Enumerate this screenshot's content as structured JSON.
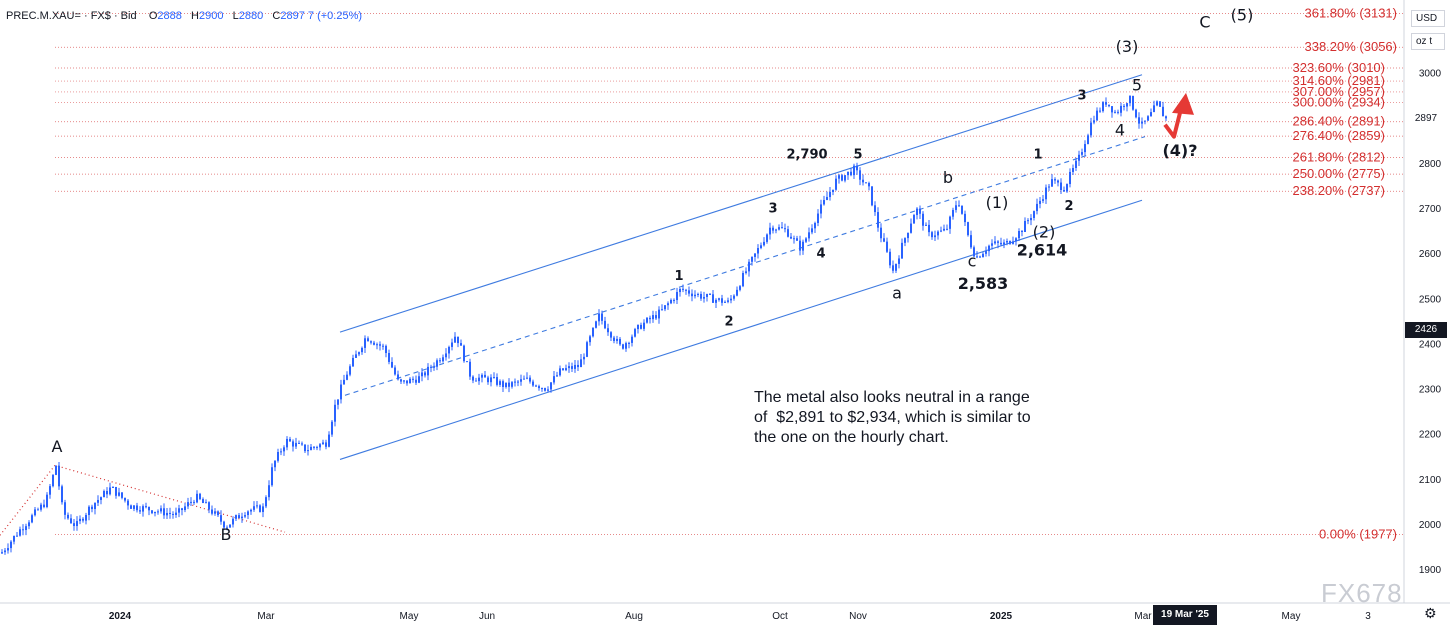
{
  "header": {
    "symbol": "PREC.M.XAU=",
    "source": "FX$",
    "quote": "Bid",
    "open_label": "O",
    "open": "2888",
    "high_label": "H",
    "high": "2900",
    "low_label": "L",
    "low": "2880",
    "close_label": "C",
    "close": "2897",
    "change": "7 (+0.25%)"
  },
  "currency": "USD",
  "unit": "oz t",
  "annotation": "The metal also looks neutral in a range\nof  $2,891 to $2,934, which is similar to\nthe one on the hourly chart.",
  "watermark": "FX678",
  "crosshair_date": "19 Mar '25",
  "crosshair_price": "2426",
  "last_price": "2897",
  "colors": {
    "up": "#2962ff",
    "fib": "#d32f2f",
    "channel": "#3f7be0",
    "arrow": "#e53935"
  },
  "chart_data": {
    "type": "candlestick",
    "title": "",
    "y_axis": {
      "ticks": [
        1900,
        2000,
        2100,
        2200,
        2300,
        2400,
        2500,
        2600,
        2700,
        2800,
        2900,
        3000
      ],
      "ylim": [
        1865,
        3160
      ]
    },
    "x_axis": {
      "ticks": [
        "2024",
        "Mar",
        "May",
        "Jun",
        "Aug",
        "Oct",
        "Nov",
        "2025",
        "Mar",
        "May",
        "3"
      ]
    },
    "fib_levels": [
      {
        "label": "361.80% (3131)",
        "value": 3131
      },
      {
        "label": "338.20% (3056)",
        "value": 3056
      },
      {
        "label": "323.60% (3010)",
        "value": 3010
      },
      {
        "label": "314.60% (2981)",
        "value": 2981
      },
      {
        "label": "307.00% (2957)",
        "value": 2957
      },
      {
        "label": "300.00% (2934)",
        "value": 2934
      },
      {
        "label": "286.40% (2891)",
        "value": 2891
      },
      {
        "label": "276.40% (2859)",
        "value": 2859
      },
      {
        "label": "261.80% (2812)",
        "value": 2812
      },
      {
        "label": "250.00% (2775)",
        "value": 2775
      },
      {
        "label": "238.20% (2737)",
        "value": 2737
      },
      {
        "label": "0.00% (1977)",
        "value": 1977
      }
    ],
    "wave_labels": [
      {
        "text": "A",
        "price": 2160,
        "small": false
      },
      {
        "text": "B",
        "price": 1965,
        "small": false
      },
      {
        "text": "1",
        "price": 2540,
        "small": true
      },
      {
        "text": "2",
        "price": 2440,
        "small": true
      },
      {
        "text": "3",
        "price": 2690,
        "small": true
      },
      {
        "text": "4",
        "price": 2590,
        "small": true
      },
      {
        "text": "5",
        "price": 2810,
        "small": true
      },
      {
        "text": "2,790",
        "price": 2810,
        "small": true
      },
      {
        "text": "a",
        "price": 2500,
        "small": false
      },
      {
        "text": "b",
        "price": 2755,
        "small": false
      },
      {
        "text": "c",
        "price": 2570,
        "small": false
      },
      {
        "text": "2,583",
        "price": 2520,
        "small": false
      },
      {
        "text": "(1)",
        "price": 2700,
        "small": false
      },
      {
        "text": "(2)",
        "price": 2635,
        "small": false
      },
      {
        "text": "2,614",
        "price": 2595,
        "small": false
      },
      {
        "text": "1",
        "price": 2810,
        "small": true
      },
      {
        "text": "2",
        "price": 2695,
        "small": true
      },
      {
        "text": "3",
        "price": 2940,
        "small": true
      },
      {
        "text": "4",
        "price": 2860,
        "small": false
      },
      {
        "text": "5",
        "price": 2960,
        "small": false
      },
      {
        "text": "(3)",
        "price": 3045,
        "small": false
      },
      {
        "text": "(4)?",
        "price": 2815,
        "small": false
      },
      {
        "text": "C",
        "price": 3100,
        "small": false
      },
      {
        "text": "(5)",
        "price": 3115,
        "small": false
      }
    ],
    "path": [
      {
        "t": 0,
        "p": 1935
      },
      {
        "t": 20,
        "p": 1990
      },
      {
        "t": 45,
        "p": 2050
      },
      {
        "t": 55,
        "p": 2130
      },
      {
        "t": 62,
        "p": 2025
      },
      {
        "t": 75,
        "p": 1995
      },
      {
        "t": 90,
        "p": 2040
      },
      {
        "t": 110,
        "p": 2080
      },
      {
        "t": 130,
        "p": 2040
      },
      {
        "t": 155,
        "p": 2030
      },
      {
        "t": 175,
        "p": 2020
      },
      {
        "t": 195,
        "p": 2060
      },
      {
        "t": 210,
        "p": 2030
      },
      {
        "t": 225,
        "p": 1995
      },
      {
        "t": 245,
        "p": 2030
      },
      {
        "t": 262,
        "p": 2035
      },
      {
        "t": 272,
        "p": 2130
      },
      {
        "t": 285,
        "p": 2185
      },
      {
        "t": 305,
        "p": 2165
      },
      {
        "t": 325,
        "p": 2180
      },
      {
        "t": 335,
        "p": 2270
      },
      {
        "t": 345,
        "p": 2330
      },
      {
        "t": 365,
        "p": 2415
      },
      {
        "t": 383,
        "p": 2390
      },
      {
        "t": 398,
        "p": 2310
      },
      {
        "t": 420,
        "p": 2325
      },
      {
        "t": 440,
        "p": 2370
      },
      {
        "t": 455,
        "p": 2420
      },
      {
        "t": 470,
        "p": 2325
      },
      {
        "t": 490,
        "p": 2320
      },
      {
        "t": 505,
        "p": 2305
      },
      {
        "t": 525,
        "p": 2320
      },
      {
        "t": 545,
        "p": 2300
      },
      {
        "t": 560,
        "p": 2340
      },
      {
        "t": 578,
        "p": 2350
      },
      {
        "t": 598,
        "p": 2460
      },
      {
        "t": 620,
        "p": 2390
      },
      {
        "t": 640,
        "p": 2440
      },
      {
        "t": 660,
        "p": 2470
      },
      {
        "t": 680,
        "p": 2520
      },
      {
        "t": 700,
        "p": 2505
      },
      {
        "t": 728,
        "p": 2490
      },
      {
        "t": 745,
        "p": 2560
      },
      {
        "t": 770,
        "p": 2660
      },
      {
        "t": 785,
        "p": 2650
      },
      {
        "t": 800,
        "p": 2610
      },
      {
        "t": 815,
        "p": 2680
      },
      {
        "t": 835,
        "p": 2760
      },
      {
        "t": 853,
        "p": 2785
      },
      {
        "t": 868,
        "p": 2740
      },
      {
        "t": 878,
        "p": 2650
      },
      {
        "t": 892,
        "p": 2560
      },
      {
        "t": 905,
        "p": 2640
      },
      {
        "t": 915,
        "p": 2700
      },
      {
        "t": 928,
        "p": 2640
      },
      {
        "t": 945,
        "p": 2650
      },
      {
        "t": 957,
        "p": 2720
      },
      {
        "t": 968,
        "p": 2630
      },
      {
        "t": 975,
        "p": 2590
      },
      {
        "t": 990,
        "p": 2620
      },
      {
        "t": 1005,
        "p": 2620
      },
      {
        "t": 1020,
        "p": 2650
      },
      {
        "t": 1035,
        "p": 2700
      },
      {
        "t": 1050,
        "p": 2760
      },
      {
        "t": 1063,
        "p": 2745
      },
      {
        "t": 1078,
        "p": 2810
      },
      {
        "t": 1092,
        "p": 2900
      },
      {
        "t": 1105,
        "p": 2935
      },
      {
        "t": 1115,
        "p": 2910
      },
      {
        "t": 1128,
        "p": 2945
      },
      {
        "t": 1140,
        "p": 2880
      },
      {
        "t": 1148,
        "p": 2900
      },
      {
        "t": 1156,
        "p": 2930
      },
      {
        "t": 1165,
        "p": 2897
      }
    ],
    "projection_arrow": {
      "from": 2880,
      "to": 2955
    }
  }
}
